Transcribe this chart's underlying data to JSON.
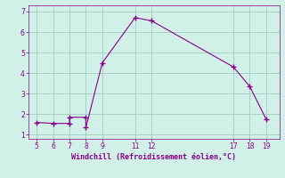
{
  "x_pts": [
    5,
    6,
    7,
    7,
    8,
    8,
    9,
    11,
    12,
    17,
    18,
    19
  ],
  "y_pts": [
    1.6,
    1.55,
    1.55,
    1.85,
    1.85,
    1.35,
    4.5,
    6.7,
    6.55,
    4.3,
    3.35,
    1.75
  ],
  "line_color": "#880088",
  "marker_color": "#880088",
  "bg_color": "#d0f0e8",
  "grid_color": "#a0ccc0",
  "xlabel": "Windchill (Refroidissement éolien,°C)",
  "xlabel_color": "#880088",
  "tick_color": "#880088",
  "xlim": [
    4.5,
    19.8
  ],
  "ylim": [
    0.8,
    7.3
  ],
  "xticks": [
    5,
    6,
    7,
    8,
    9,
    11,
    12,
    17,
    18,
    19
  ],
  "yticks": [
    1,
    2,
    3,
    4,
    5,
    6,
    7
  ]
}
